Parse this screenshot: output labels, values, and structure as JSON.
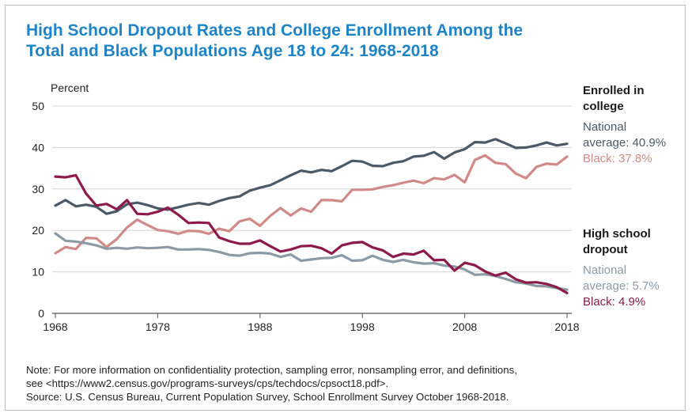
{
  "title_line1": "High School Dropout Rates and College Enrollment Among the",
  "title_line2": "Total and Black Populations Age 18 to 24: 1968-2018",
  "notes": {
    "line1": "Note: For more information on confidentiality protection, sampling error, nonsampling error, and definitions,",
    "line2": "see <https://www2.census.gov/programs-surveys/cps/techdocs/cpsoct18.pdf>.",
    "line3": "Source: U.S. Census Bureau, Current Population Survey, School Enrollment Survey October 1968-2018."
  },
  "legend": {
    "college": {
      "heading_line1": "Enrolled in",
      "heading_line2": "college",
      "national_line1": "National",
      "national_line2": "average: 40.9%",
      "black": "Black: 37.8%"
    },
    "dropout": {
      "heading_line1": "High school",
      "heading_line2": "dropout",
      "national_line1": "National",
      "national_line2": "average: 5.7%",
      "black": "Black: 4.9%"
    }
  },
  "colors": {
    "title": "#1f84c6",
    "college_national": "#4a5a68",
    "college_black": "#d08a88",
    "dropout_national": "#8a9ba6",
    "dropout_black": "#8c1a4a"
  },
  "chart_data": {
    "type": "line",
    "ylabel": "Percent",
    "xlim": [
      1968,
      2018
    ],
    "ylim": [
      0,
      50
    ],
    "xticks": [
      "1968",
      "1978",
      "1988",
      "1998",
      "2008",
      "2018"
    ],
    "yticks": [
      "0",
      "10",
      "20",
      "30",
      "40",
      "50"
    ],
    "grid": "horizontal",
    "x": [
      1968,
      1969,
      1970,
      1971,
      1972,
      1973,
      1974,
      1975,
      1976,
      1977,
      1978,
      1979,
      1980,
      1981,
      1982,
      1983,
      1984,
      1985,
      1986,
      1987,
      1988,
      1989,
      1990,
      1991,
      1992,
      1993,
      1994,
      1995,
      1996,
      1997,
      1998,
      1999,
      2000,
      2001,
      2002,
      2003,
      2004,
      2005,
      2006,
      2007,
      2008,
      2009,
      2010,
      2011,
      2012,
      2013,
      2014,
      2015,
      2016,
      2017,
      2018
    ],
    "series": [
      {
        "name": "Enrolled in college — National average",
        "color_key": "college_national",
        "values": [
          26.0,
          27.3,
          25.8,
          26.2,
          25.7,
          24.0,
          24.6,
          26.3,
          26.7,
          26.1,
          25.3,
          25.0,
          25.6,
          26.2,
          26.6,
          26.2,
          27.1,
          27.8,
          28.2,
          29.6,
          30.3,
          30.9,
          32.1,
          33.3,
          34.4,
          34.0,
          34.6,
          34.3,
          35.5,
          36.8,
          36.6,
          35.6,
          35.5,
          36.3,
          36.7,
          37.8,
          38.0,
          38.9,
          37.3,
          38.8,
          39.6,
          41.3,
          41.2,
          42.0,
          41.0,
          39.9,
          40.0,
          40.5,
          41.2,
          40.5,
          40.9
        ]
      },
      {
        "name": "Enrolled in college — Black",
        "color_key": "college_black",
        "values": [
          14.5,
          16.0,
          15.5,
          18.2,
          18.1,
          16.0,
          17.9,
          20.7,
          22.6,
          21.3,
          20.1,
          19.8,
          19.2,
          19.9,
          19.8,
          19.2,
          20.4,
          19.8,
          22.2,
          22.8,
          21.1,
          23.5,
          25.4,
          23.6,
          25.3,
          24.5,
          27.3,
          27.3,
          27.0,
          29.8,
          29.8,
          29.9,
          30.5,
          30.9,
          31.5,
          32.0,
          31.4,
          32.6,
          32.3,
          33.4,
          31.6,
          37.0,
          38.1,
          36.3,
          36.0,
          33.7,
          32.6,
          35.3,
          36.1,
          35.9,
          37.8
        ]
      },
      {
        "name": "High school dropout — National average",
        "color_key": "dropout_national",
        "values": [
          19.3,
          17.5,
          17.3,
          16.9,
          16.4,
          15.6,
          15.8,
          15.6,
          15.9,
          15.7,
          15.8,
          16.0,
          15.4,
          15.4,
          15.5,
          15.3,
          14.8,
          14.1,
          13.9,
          14.5,
          14.6,
          14.4,
          13.6,
          14.2,
          12.7,
          13.0,
          13.3,
          13.4,
          14.0,
          12.7,
          12.8,
          13.9,
          12.9,
          12.4,
          12.9,
          12.3,
          12.0,
          12.1,
          11.5,
          11.3,
          10.6,
          9.3,
          9.4,
          9.0,
          8.3,
          7.5,
          7.2,
          6.6,
          6.5,
          6.1,
          5.7
        ]
      },
      {
        "name": "High school dropout — Black",
        "color_key": "dropout_black",
        "values": [
          33.0,
          32.8,
          33.3,
          28.9,
          26.0,
          26.4,
          25.1,
          27.3,
          24.0,
          23.9,
          24.5,
          25.5,
          23.8,
          21.8,
          21.9,
          21.8,
          18.3,
          17.4,
          16.8,
          16.8,
          17.6,
          16.2,
          14.9,
          15.4,
          16.2,
          16.3,
          15.7,
          14.4,
          16.4,
          17.0,
          17.2,
          15.9,
          15.2,
          13.6,
          14.4,
          14.2,
          15.1,
          12.8,
          12.9,
          10.3,
          12.2,
          11.6,
          10.1,
          9.1,
          9.8,
          8.2,
          7.4,
          7.5,
          7.1,
          6.3,
          4.9
        ]
      }
    ]
  }
}
